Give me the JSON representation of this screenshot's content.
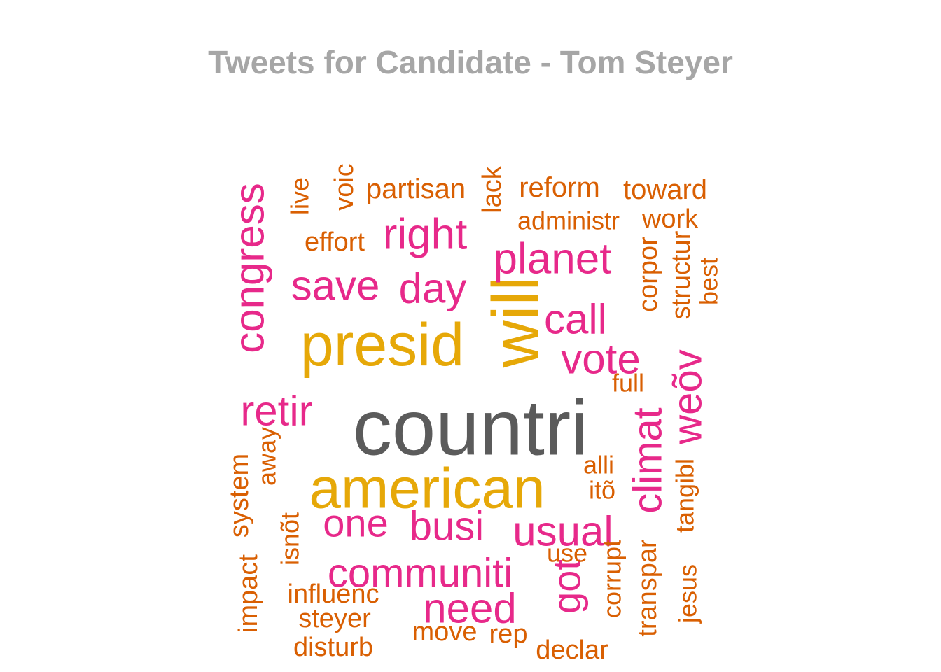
{
  "chart_data": {
    "type": "wordcloud",
    "title": "Tweets for Candidate - Tom Steyer",
    "colors": {
      "top": "#5b5b5b",
      "high": "#e6a808",
      "mid": "#e7298a",
      "low": "#d95f02"
    },
    "words": [
      {
        "text": "countri",
        "freq": 5,
        "tier": "top"
      },
      {
        "text": "american",
        "freq": 4,
        "tier": "high"
      },
      {
        "text": "presid",
        "freq": 4,
        "tier": "high"
      },
      {
        "text": "will",
        "freq": 4,
        "tier": "high"
      },
      {
        "text": "congress",
        "freq": 3,
        "tier": "mid"
      },
      {
        "text": "planet",
        "freq": 3,
        "tier": "mid"
      },
      {
        "text": "right",
        "freq": 3,
        "tier": "mid"
      },
      {
        "text": "save",
        "freq": 3,
        "tier": "mid"
      },
      {
        "text": "day",
        "freq": 3,
        "tier": "mid"
      },
      {
        "text": "call",
        "freq": 3,
        "tier": "mid"
      },
      {
        "text": "vote",
        "freq": 3,
        "tier": "mid"
      },
      {
        "text": "retir",
        "freq": 3,
        "tier": "mid"
      },
      {
        "text": "weõv",
        "freq": 3,
        "tier": "mid"
      },
      {
        "text": "climat",
        "freq": 3,
        "tier": "mid"
      },
      {
        "text": "one",
        "freq": 3,
        "tier": "mid"
      },
      {
        "text": "busi",
        "freq": 3,
        "tier": "mid"
      },
      {
        "text": "usual",
        "freq": 3,
        "tier": "mid"
      },
      {
        "text": "communiti",
        "freq": 3,
        "tier": "mid"
      },
      {
        "text": "need",
        "freq": 3,
        "tier": "mid"
      },
      {
        "text": "got",
        "freq": 3,
        "tier": "mid"
      },
      {
        "text": "partisan",
        "freq": 2,
        "tier": "low"
      },
      {
        "text": "reform",
        "freq": 2,
        "tier": "low"
      },
      {
        "text": "toward",
        "freq": 2,
        "tier": "low"
      },
      {
        "text": "administr",
        "freq": 2,
        "tier": "low"
      },
      {
        "text": "work",
        "freq": 2,
        "tier": "low"
      },
      {
        "text": "lack",
        "freq": 2,
        "tier": "low"
      },
      {
        "text": "voic",
        "freq": 2,
        "tier": "low"
      },
      {
        "text": "live",
        "freq": 2,
        "tier": "low"
      },
      {
        "text": "effort",
        "freq": 2,
        "tier": "low"
      },
      {
        "text": "corpor",
        "freq": 2,
        "tier": "low"
      },
      {
        "text": "structur",
        "freq": 2,
        "tier": "low"
      },
      {
        "text": "best",
        "freq": 2,
        "tier": "low"
      },
      {
        "text": "full",
        "freq": 2,
        "tier": "low"
      },
      {
        "text": "alli",
        "freq": 2,
        "tier": "low"
      },
      {
        "text": "itõ",
        "freq": 2,
        "tier": "low"
      },
      {
        "text": "away",
        "freq": 2,
        "tier": "low"
      },
      {
        "text": "system",
        "freq": 2,
        "tier": "low"
      },
      {
        "text": "impact",
        "freq": 2,
        "tier": "low"
      },
      {
        "text": "isnõt",
        "freq": 2,
        "tier": "low"
      },
      {
        "text": "influenc",
        "freq": 2,
        "tier": "low"
      },
      {
        "text": "steyer",
        "freq": 2,
        "tier": "low"
      },
      {
        "text": "disturb",
        "freq": 2,
        "tier": "low"
      },
      {
        "text": "move",
        "freq": 2,
        "tier": "low"
      },
      {
        "text": "rep",
        "freq": 2,
        "tier": "low"
      },
      {
        "text": "declar",
        "freq": 2,
        "tier": "low"
      },
      {
        "text": "use",
        "freq": 2,
        "tier": "low"
      },
      {
        "text": "corrupt",
        "freq": 2,
        "tier": "low"
      },
      {
        "text": "transpar",
        "freq": 2,
        "tier": "low"
      },
      {
        "text": "tangibl",
        "freq": 2,
        "tier": "low"
      },
      {
        "text": "jesus",
        "freq": 2,
        "tier": "low"
      }
    ]
  }
}
